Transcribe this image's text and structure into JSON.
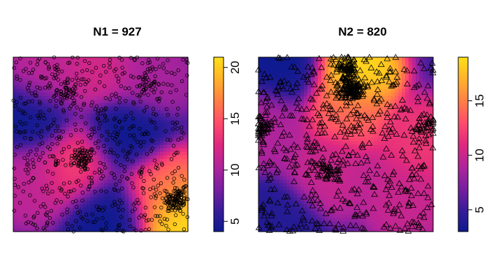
{
  "colors": {
    "scale": [
      "#0d1a8f",
      "#3a1c9a",
      "#7a1fa0",
      "#b2249b",
      "#e0297f",
      "#ff4d6b",
      "#ff7f45",
      "#ffb22a",
      "#ffe018"
    ],
    "point_stroke": "#000000",
    "frame": "#000000"
  },
  "chart_data": [
    {
      "type": "heatmap",
      "title": "N1 = 927",
      "point_symbol": "circle",
      "n_points": 927,
      "colorbar": {
        "min": 4,
        "max": 21,
        "ticks": [
          5,
          10,
          15,
          20
        ],
        "tick_labels": [
          "5",
          "10",
          "15",
          "20"
        ]
      },
      "intensity_peaks": [
        {
          "x": 0.35,
          "y": 0.38,
          "value": 14
        },
        {
          "x": 0.95,
          "y": 0.08,
          "value": 21
        },
        {
          "x": 0.85,
          "y": 0.25,
          "value": 16
        },
        {
          "x": 0.5,
          "y": 0.95,
          "value": 12
        },
        {
          "x": 0.1,
          "y": 0.3,
          "value": 11
        },
        {
          "x": 0.2,
          "y": 0.9,
          "value": 11
        },
        {
          "x": 0.78,
          "y": 0.9,
          "value": 10
        },
        {
          "x": 0.65,
          "y": 0.55,
          "value": 4
        },
        {
          "x": 0.1,
          "y": 0.65,
          "value": 4
        },
        {
          "x": 0.55,
          "y": 0.1,
          "value": 4
        }
      ],
      "point_clusters": [
        {
          "x": 0.4,
          "y": 0.42,
          "n": 70
        },
        {
          "x": 0.93,
          "y": 0.18,
          "n": 110
        },
        {
          "x": 0.3,
          "y": 0.8,
          "n": 40
        },
        {
          "x": 0.75,
          "y": 0.85,
          "n": 40
        }
      ]
    },
    {
      "type": "heatmap",
      "title": "N2 = 820",
      "point_symbol": "triangle",
      "n_points": 820,
      "colorbar": {
        "min": 3,
        "max": 19,
        "ticks": [
          5,
          10,
          15
        ],
        "tick_labels": [
          "5",
          "10",
          "15"
        ]
      },
      "intensity_peaks": [
        {
          "x": 0.55,
          "y": 0.92,
          "value": 19
        },
        {
          "x": 0.5,
          "y": 0.7,
          "value": 14
        },
        {
          "x": 0.95,
          "y": 0.5,
          "value": 12
        },
        {
          "x": 0.85,
          "y": 0.2,
          "value": 10
        },
        {
          "x": 0.4,
          "y": 0.35,
          "value": 10
        },
        {
          "x": 0.05,
          "y": 0.6,
          "value": 9
        },
        {
          "x": 0.15,
          "y": 0.95,
          "value": 3
        },
        {
          "x": 0.1,
          "y": 0.05,
          "value": 4
        }
      ],
      "point_clusters": [
        {
          "x": 0.53,
          "y": 0.82,
          "n": 120
        },
        {
          "x": 0.5,
          "y": 0.94,
          "n": 60
        },
        {
          "x": 0.03,
          "y": 0.6,
          "n": 40
        },
        {
          "x": 0.97,
          "y": 0.6,
          "n": 30
        },
        {
          "x": 0.4,
          "y": 0.35,
          "n": 40
        }
      ]
    }
  ]
}
